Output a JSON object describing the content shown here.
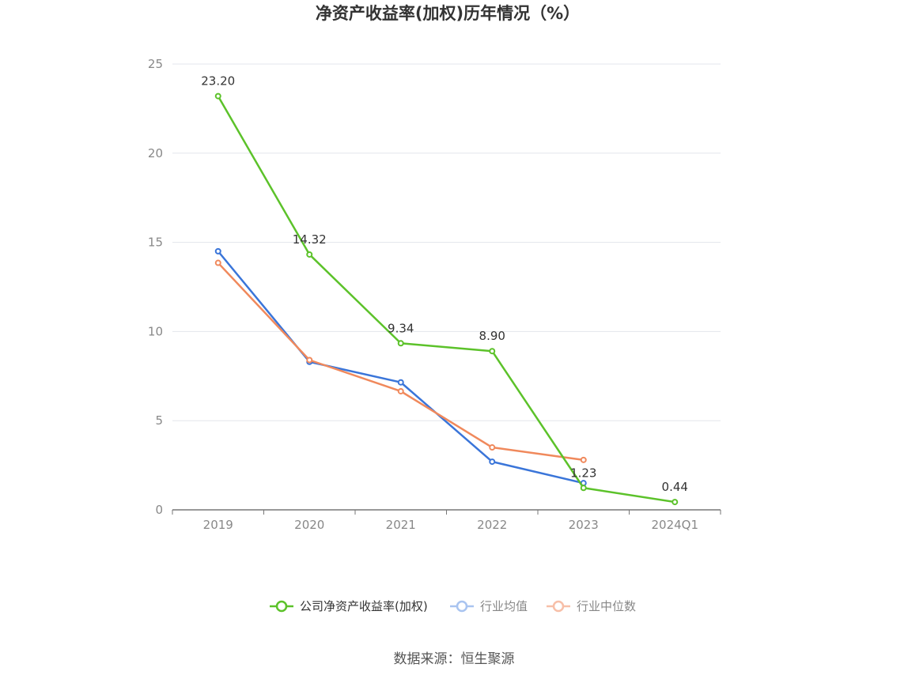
{
  "chart_data": {
    "type": "line",
    "title": "净资产收益率(加权)历年情况（%）",
    "categories": [
      "2019",
      "2020",
      "2021",
      "2022",
      "2023",
      "2024Q1"
    ],
    "ylim": [
      0,
      25
    ],
    "yticks": [
      "0",
      "5",
      "10",
      "15",
      "20",
      "25"
    ],
    "grid": true,
    "legend_position": "bottom",
    "series": [
      {
        "name": "公司净资产收益率(加权)",
        "color": "#5cc22a",
        "values": [
          23.2,
          14.32,
          9.34,
          8.9,
          1.23,
          0.44
        ],
        "labels": [
          "23.20",
          "14.32",
          "9.34",
          "8.90",
          "1.23",
          "0.44"
        ]
      },
      {
        "name": "行业均值",
        "color": "#3a75d9",
        "values": [
          14.5,
          8.3,
          7.15,
          2.7,
          1.5,
          null
        ]
      },
      {
        "name": "行业中位数",
        "color": "#f0895c",
        "values": [
          13.85,
          8.4,
          6.65,
          3.5,
          2.8,
          null
        ]
      }
    ],
    "legend_colors": [
      "#5cc22a",
      "#a9c4f0",
      "#f7bfa8"
    ],
    "legend_text_colors": [
      "#333333",
      "#888888",
      "#888888"
    ]
  },
  "source": "数据来源：恒生聚源"
}
